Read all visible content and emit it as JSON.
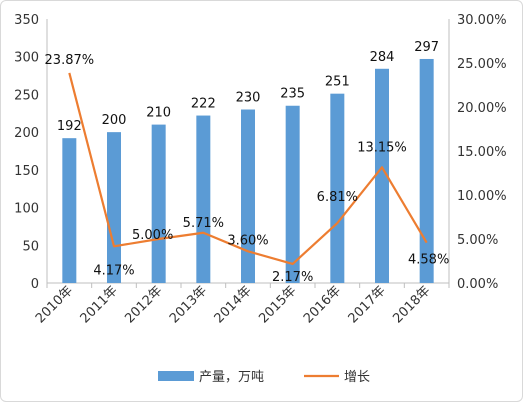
{
  "chart_data": {
    "type": "bar",
    "categories": [
      "2010年",
      "2011年",
      "2012年",
      "2013年",
      "2014年",
      "2015年",
      "2016年",
      "2017年",
      "2018年"
    ],
    "series": [
      {
        "name": "产量，万吨",
        "type": "bar",
        "axis": "left",
        "color": "#5b9bd5",
        "values": [
          192,
          200,
          210,
          222,
          230,
          235,
          251,
          284,
          297
        ],
        "labels": [
          "192",
          "200",
          "210",
          "222",
          "230",
          "235",
          "251",
          "284",
          "297"
        ]
      },
      {
        "name": "增长",
        "type": "line",
        "axis": "right",
        "color": "#ed7d31",
        "values": [
          23.87,
          4.17,
          5.0,
          5.71,
          3.6,
          2.17,
          6.81,
          13.15,
          4.58
        ],
        "labels": [
          "23.87%",
          "4.17%",
          "5.00%",
          "5.71%",
          "3.60%",
          "2.17%",
          "6.81%",
          "13.15%",
          "4.58%"
        ]
      }
    ],
    "y_left": {
      "min": 0,
      "max": 350,
      "ticks": [
        0,
        50,
        100,
        150,
        200,
        250,
        300,
        350
      ],
      "tick_labels": [
        "0",
        "50",
        "100",
        "150",
        "200",
        "250",
        "300",
        "350"
      ]
    },
    "y_right": {
      "min": 0,
      "max": 30,
      "ticks": [
        0,
        5,
        10,
        15,
        20,
        25,
        30
      ],
      "tick_labels": [
        "0.00%",
        "5.00%",
        "10.00%",
        "15.00%",
        "20.00%",
        "25.00%",
        "30.00%"
      ]
    },
    "grid": false,
    "legend_position": "bottom",
    "title": "",
    "xlabel": "",
    "ylabel": ""
  }
}
